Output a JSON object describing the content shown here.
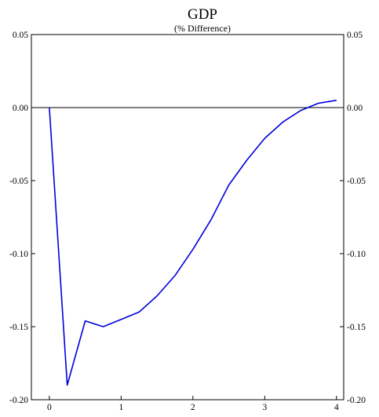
{
  "chart_data": {
    "type": "line",
    "title": "GDP",
    "subtitle": "(% Difference)",
    "xlim": [
      -0.25,
      4.1
    ],
    "ylim": [
      -0.2,
      0.05
    ],
    "x_ticks": [
      0,
      1,
      2,
      3,
      4
    ],
    "x_tick_labels": [
      "0",
      "1",
      "2",
      "3",
      "4"
    ],
    "y_ticks": [
      0.05,
      0.0,
      -0.05,
      -0.1,
      -0.15,
      -0.2
    ],
    "y_tick_labels": [
      "0.05",
      "0.00",
      "-0.05",
      "-0.10",
      "-0.15",
      "-0.20"
    ],
    "reference_line_y": 0,
    "grid": false,
    "series": [
      {
        "color": "#0000dd",
        "x": [
          0,
          0.25,
          0.5,
          0.75,
          1.0,
          1.25,
          1.5,
          1.75,
          2.0,
          2.25,
          2.5,
          2.75,
          3.0,
          3.25,
          3.5,
          3.75,
          4.0
        ],
        "y": [
          0.0,
          -0.19,
          -0.146,
          -0.15,
          -0.145,
          -0.14,
          -0.129,
          -0.115,
          -0.097,
          -0.077,
          -0.053,
          -0.036,
          -0.021,
          -0.01,
          -0.002,
          0.003,
          0.005
        ]
      }
    ]
  }
}
